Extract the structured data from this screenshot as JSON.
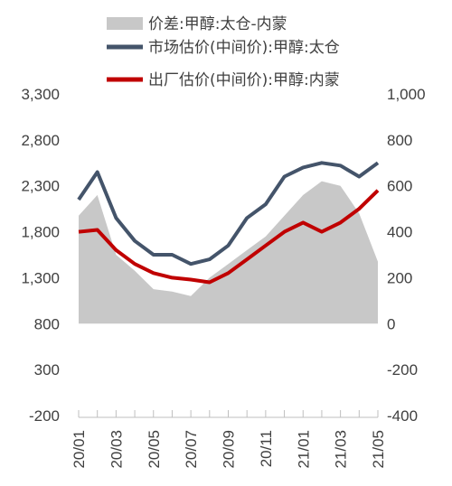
{
  "chart_data": {
    "type": "line",
    "x": [
      "20/01",
      "20/02",
      "20/03",
      "20/04",
      "20/05",
      "20/06",
      "20/07",
      "20/08",
      "20/09",
      "20/10",
      "20/11",
      "20/12",
      "21/01",
      "21/02",
      "21/03",
      "21/04",
      "21/05"
    ],
    "x_tick_labels": [
      "20/01",
      "20/03",
      "20/05",
      "20/07",
      "20/09",
      "20/11",
      "21/01",
      "21/03",
      "21/05"
    ],
    "y_left_ticks": [
      "3,300",
      "2,800",
      "2,300",
      "1,800",
      "1,300",
      "800",
      "300",
      "-200"
    ],
    "y_right_ticks": [
      "1,000",
      "800",
      "600",
      "400",
      "200",
      "0",
      "-200",
      "-400"
    ],
    "y_left_range": [
      -200,
      3300
    ],
    "y_right_range": [
      -400,
      1000
    ],
    "legend_position": "top",
    "grid": false,
    "series": [
      {
        "name": "价差:甲醇:太仓-内蒙",
        "type": "area",
        "axis": "right",
        "color": "#c8c8c8",
        "values": [
          470,
          560,
          300,
          230,
          150,
          140,
          120,
          200,
          260,
          320,
          380,
          470,
          560,
          620,
          600,
          480,
          270
        ]
      },
      {
        "name": "市场估价(中间价):甲醇:太仓",
        "type": "line",
        "axis": "left",
        "color": "#44546a",
        "values": [
          2150,
          2450,
          1950,
          1700,
          1550,
          1550,
          1450,
          1500,
          1650,
          1950,
          2100,
          2400,
          2500,
          2550,
          2520,
          2400,
          2550
        ]
      },
      {
        "name": "出厂估价(中间价):甲醇:内蒙",
        "type": "line",
        "axis": "left",
        "color": "#c00000",
        "values": [
          1800,
          1820,
          1600,
          1450,
          1350,
          1300,
          1280,
          1250,
          1350,
          1500,
          1650,
          1800,
          1900,
          1800,
          1900,
          2050,
          2250
        ]
      }
    ]
  }
}
